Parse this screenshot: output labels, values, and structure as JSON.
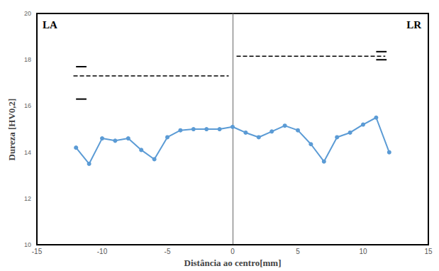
{
  "chart_data": {
    "type": "line",
    "xlabel": "Distância ao centro[mm]",
    "ylabel": "Dureza [HV0,2]",
    "annotations": [
      "LA",
      "LR"
    ],
    "x": [
      -12,
      -11,
      -10,
      -9,
      -8,
      -7,
      -6,
      -5,
      -4,
      -3,
      -2,
      -1,
      0,
      1,
      2,
      3,
      4,
      5,
      6,
      7,
      8,
      9,
      10,
      11,
      12
    ],
    "values": [
      14.2,
      13.5,
      14.6,
      14.5,
      14.6,
      14.1,
      13.7,
      14.65,
      14.95,
      15.0,
      15.0,
      15.0,
      15.1,
      14.85,
      14.65,
      14.9,
      15.15,
      14.95,
      14.35,
      13.6,
      14.65,
      14.85,
      15.2,
      15.5,
      14.0
    ],
    "color": "#5b9bd5",
    "marker": "circle",
    "reference_lines": [
      {
        "x": [
          -12.2,
          -0.3
        ],
        "mean": 17.3,
        "bounds": [
          16.3,
          17.7
        ],
        "bounds_x": [
          -12,
          -11.2
        ],
        "color": "#000000",
        "line_style": "dashed"
      },
      {
        "x": [
          0.3,
          11.7
        ],
        "mean": 18.15,
        "bounds": [
          18.0,
          18.35
        ],
        "bounds_x": [
          11,
          11.8
        ],
        "color": "#000000",
        "line_style": "dashed"
      }
    ],
    "xlim": [
      -15,
      15
    ],
    "xticks": [
      -15,
      -10,
      -5,
      0,
      5,
      10,
      15
    ],
    "ylim": [
      10,
      20
    ],
    "yticks": [
      10,
      12,
      14,
      16,
      18,
      20
    ],
    "grid": false
  }
}
